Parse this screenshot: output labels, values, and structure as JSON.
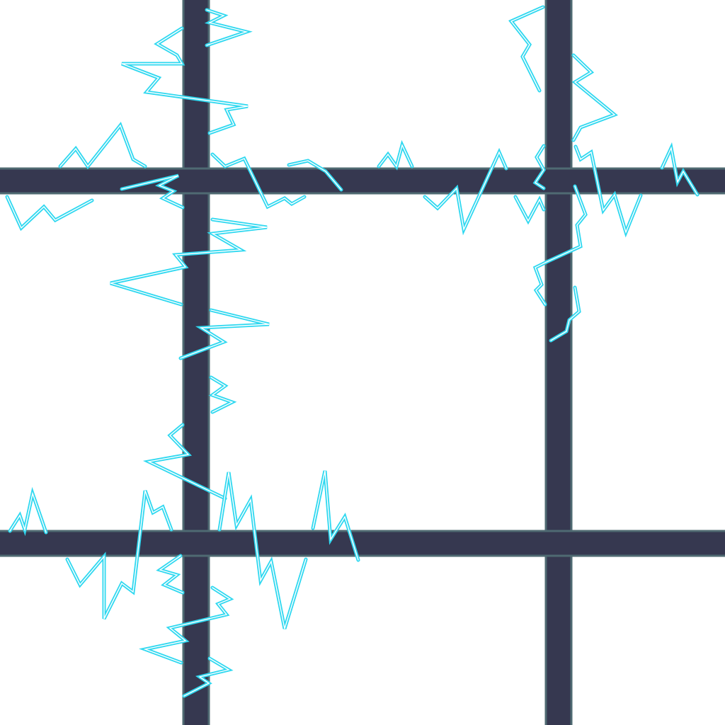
{
  "colors": {
    "background": "#ffffff",
    "wall_fill": "#363850",
    "wall_edge": "#4f6a72",
    "lightning": "#2fd8f0"
  },
  "scene": {
    "walls": [
      "wall-vertical-left",
      "wall-vertical-right",
      "wall-horizontal-top",
      "wall-horizontal-bottom"
    ],
    "lightning_bolt_count": 26,
    "icons": [
      "lightning-bolt-icon"
    ]
  }
}
